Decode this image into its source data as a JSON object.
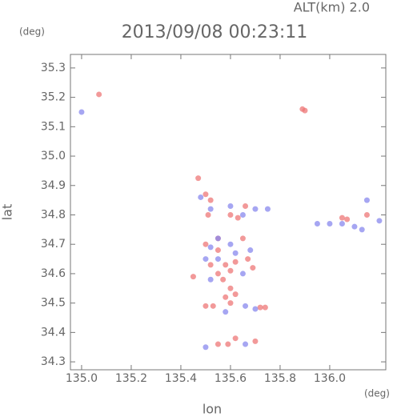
{
  "chart_data": {
    "type": "scatter",
    "title": "2013/09/08 00:23:11",
    "header": "ALT(km) 2.0",
    "y_unit": "(deg)",
    "x_unit": "(deg)",
    "xlabel": "lon",
    "ylabel": "lat",
    "xlim": [
      134.955,
      136.226
    ],
    "ylim": [
      34.273,
      35.346
    ],
    "xticks": [
      {
        "value": 135,
        "label": "135.0"
      },
      135.2,
      135.4,
      135.6,
      135.8,
      {
        "value": 136,
        "label": "136.0"
      }
    ],
    "yticks": [
      34.3,
      34.4,
      34.5,
      34.6,
      34.7,
      34.8,
      34.9,
      {
        "value": 35,
        "label": "35.0"
      },
      35.1,
      35.2,
      35.3
    ],
    "series": [
      {
        "color": "#ee7777",
        "x": [
          135.07,
          135.9,
          135.89,
          135.47,
          135.5,
          135.52,
          135.51,
          135.6,
          135.63,
          135.66,
          135.5,
          135.55,
          135.58,
          135.6,
          135.62,
          135.55,
          135.57,
          135.6,
          135.62,
          135.58,
          135.6,
          135.45,
          135.5,
          135.53,
          135.72,
          135.74,
          135.62,
          135.55,
          135.59,
          135.7,
          136.05,
          136.07,
          136.15,
          135.67,
          135.52,
          135.65,
          135.69,
          135.55
        ],
        "values": [
          35.21,
          35.155,
          35.16,
          34.925,
          34.87,
          34.85,
          34.8,
          34.8,
          34.79,
          34.83,
          34.7,
          34.68,
          34.63,
          34.61,
          34.64,
          34.6,
          34.58,
          34.55,
          34.53,
          34.52,
          34.5,
          34.59,
          34.49,
          34.49,
          34.485,
          34.485,
          34.38,
          34.36,
          34.36,
          34.37,
          34.79,
          34.785,
          34.8,
          34.65,
          34.63,
          34.72,
          34.62,
          34.72
        ]
      },
      {
        "color": "#8888ee",
        "x": [
          135.0,
          135.48,
          135.52,
          135.6,
          135.65,
          135.7,
          135.75,
          135.52,
          135.55,
          135.62,
          135.5,
          135.52,
          135.65,
          135.58,
          135.7,
          135.66,
          135.5,
          135.66,
          135.95,
          136.0,
          136.05,
          136.1,
          136.13,
          136.15,
          136.2,
          135.6,
          135.55,
          135.68
        ],
        "values": [
          35.15,
          34.86,
          34.82,
          34.83,
          34.8,
          34.82,
          34.82,
          34.69,
          34.72,
          34.67,
          34.65,
          34.58,
          34.6,
          34.47,
          34.48,
          34.49,
          34.35,
          34.36,
          34.77,
          34.77,
          34.77,
          34.76,
          34.75,
          34.85,
          34.78,
          34.7,
          34.65,
          34.68
        ]
      }
    ]
  }
}
